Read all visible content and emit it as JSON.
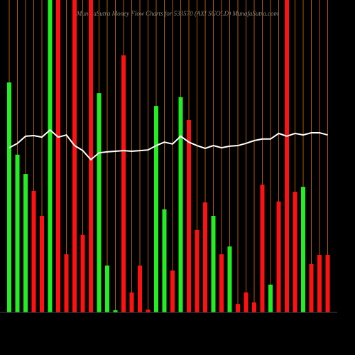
{
  "chart_data": {
    "type": "bar",
    "title": "MunafaSutra Money Flow Charts for 533570 (AXI SGOLD) MunafaSutra.com",
    "categories": [
      null,
      null,
      null,
      null,
      null,
      null,
      null,
      null,
      null,
      null,
      null,
      null,
      null,
      null,
      null,
      null,
      null,
      null,
      null,
      null,
      null,
      null,
      null,
      null,
      null,
      null,
      null,
      null,
      null,
      null,
      null,
      null,
      null,
      null,
      null,
      null,
      null,
      null,
      null,
      null
    ],
    "series": [
      {
        "values": [
          73.6,
          50.5,
          44.3,
          38.9,
          30.9,
          100,
          100,
          18.6,
          100,
          24.8,
          100,
          70.2,
          15,
          0.7,
          82.3,
          6.4,
          15,
          0.9,
          66.1,
          33,
          13.4,
          68.9,
          61.6,
          26.4,
          35.2,
          30.9,
          18.6,
          21.1,
          2.7,
          6.4,
          3.2,
          40.9,
          8.9,
          35.5,
          100,
          38.6,
          40.2,
          15.5,
          18.4,
          18.4
        ],
        "colors": [
          "#22ee22",
          "#22ee22",
          "#22ee22",
          "#ff1111",
          "#ff1111",
          "#22ee22",
          "#ff1111",
          "#ff1111",
          "#ff1111",
          "#ff1111",
          "#ff1111",
          "#22ee22",
          "#22ee22",
          "#22ee22",
          "#ff1111",
          "#ff1111",
          "#ff1111",
          "#ff1111",
          "#22ee22",
          "#22ee22",
          "#ff1111",
          "#22ee22",
          "#ff1111",
          "#ff1111",
          "#ff1111",
          "#22ee22",
          "#ff1111",
          "#22ee22",
          "#ff1111",
          "#ff1111",
          "#ff1111",
          "#ff1111",
          "#22ee22",
          "#ff1111",
          "#ff1111",
          "#ff1111",
          "#22ee22",
          "#ff1111",
          "#ff1111",
          "#ff1111"
        ]
      },
      {
        "type": "line",
        "color": "#ffffff",
        "values": [
          52.7,
          54.1,
          56.4,
          56.6,
          56.1,
          58.4,
          56.1,
          56.8,
          53.4,
          51.8,
          48.9,
          51.1,
          51.4,
          51.6,
          51.8,
          51.6,
          51.8,
          52,
          53.4,
          54.5,
          53.9,
          56.4,
          54.5,
          53.4,
          52.5,
          53.4,
          52.7,
          53.2,
          53.4,
          54.1,
          55,
          55.5,
          55.5,
          57.3,
          56.4,
          57.3,
          56.8,
          57.5,
          57.5,
          56.8
        ]
      }
    ],
    "ylim": [
      0,
      100
    ],
    "grid": true,
    "grid_color": "#b05a00"
  }
}
